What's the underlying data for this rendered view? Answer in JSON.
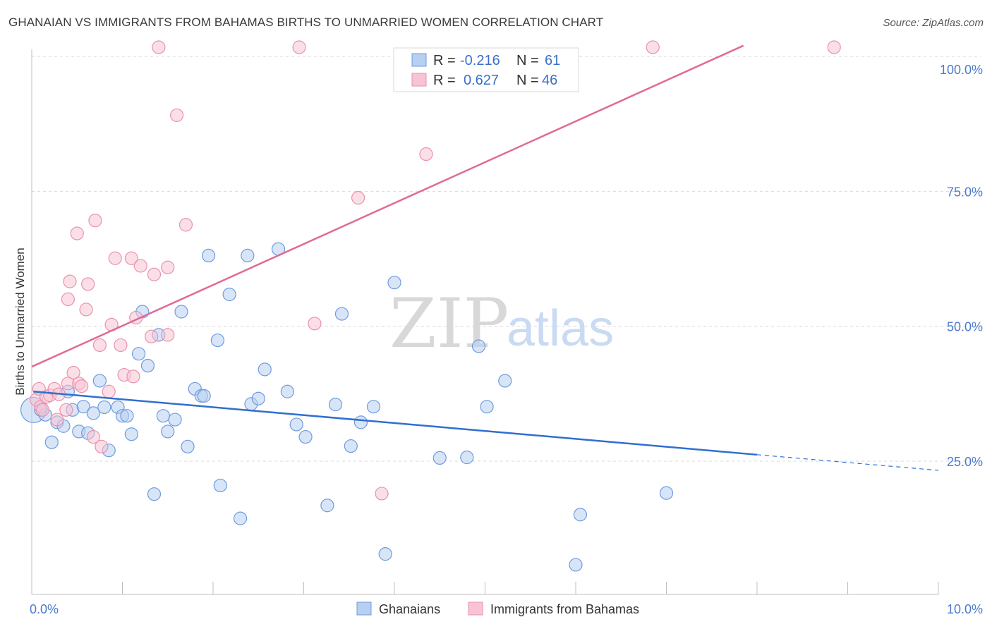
{
  "title": "GHANAIAN VS IMMIGRANTS FROM BAHAMAS BIRTHS TO UNMARRIED WOMEN CORRELATION CHART",
  "source": "Source: ZipAtlas.com",
  "watermark": {
    "part1": "ZIP",
    "part2": "atlas"
  },
  "colors": {
    "blue_fill": "#b7cff0",
    "blue_stroke": "#6f9be0",
    "blue_line": "#2f6fd0",
    "pink_fill": "#f7c4d4",
    "pink_stroke": "#e992ae",
    "pink_line": "#e06a93",
    "grid": "#d9d9d9",
    "tick_text": "#4a7bd0"
  },
  "legend": {
    "row1": {
      "r_label": "R =",
      "r_value": "-0.216",
      "n_label": "N =",
      "n_value": "61"
    },
    "row2": {
      "r_label": "R =",
      "r_value": "0.627",
      "n_label": "N =",
      "n_value": "46"
    }
  },
  "chart_data": {
    "type": "scatter",
    "title": "GHANAIAN VS IMMIGRANTS FROM BAHAMAS BIRTHS TO UNMARRIED WOMEN CORRELATION CHART",
    "xlabel": "",
    "ylabel": "Births to Unmarried Women",
    "xlim": [
      0,
      10
    ],
    "ylim": [
      0,
      102
    ],
    "x_tick_labels": [
      {
        "value": 0,
        "label": "0.0%"
      },
      {
        "value": 10,
        "label": "10.0%"
      }
    ],
    "y_tick_labels": [
      {
        "value": 25,
        "label": "25.0%"
      },
      {
        "value": 50,
        "label": "50.0%"
      },
      {
        "value": 75,
        "label": "75.0%"
      },
      {
        "value": 100,
        "label": "100.0%"
      }
    ],
    "series": [
      {
        "name": "Ghanaians",
        "color": "#6f9be0",
        "r": -0.216,
        "n": 61,
        "trend": {
          "x0": 0.02,
          "y0": 37.9,
          "x1": 8.0,
          "y1": 26.2,
          "dash_to_x": 10.0,
          "dash_to_y": 23.3
        },
        "points": [
          {
            "x": 0.02,
            "y": 34.5,
            "big": true
          },
          {
            "x": 0.1,
            "y": 34.5
          },
          {
            "x": 0.15,
            "y": 33.6
          },
          {
            "x": 0.22,
            "y": 28.5
          },
          {
            "x": 0.28,
            "y": 32.2
          },
          {
            "x": 0.35,
            "y": 31.5
          },
          {
            "x": 0.4,
            "y": 37.9
          },
          {
            "x": 0.45,
            "y": 34.5
          },
          {
            "x": 0.52,
            "y": 30.5
          },
          {
            "x": 0.57,
            "y": 35.1
          },
          {
            "x": 0.62,
            "y": 30.2
          },
          {
            "x": 0.68,
            "y": 33.9
          },
          {
            "x": 0.75,
            "y": 39.9
          },
          {
            "x": 0.8,
            "y": 35.0
          },
          {
            "x": 0.85,
            "y": 27.0
          },
          {
            "x": 0.95,
            "y": 35.0
          },
          {
            "x": 1.0,
            "y": 33.4
          },
          {
            "x": 1.05,
            "y": 33.4
          },
          {
            "x": 1.1,
            "y": 30.0
          },
          {
            "x": 1.18,
            "y": 44.9
          },
          {
            "x": 1.22,
            "y": 52.7
          },
          {
            "x": 1.28,
            "y": 42.7
          },
          {
            "x": 1.35,
            "y": 18.9
          },
          {
            "x": 1.4,
            "y": 48.4
          },
          {
            "x": 1.45,
            "y": 33.4
          },
          {
            "x": 1.5,
            "y": 30.5
          },
          {
            "x": 1.58,
            "y": 32.7
          },
          {
            "x": 1.65,
            "y": 52.7
          },
          {
            "x": 1.72,
            "y": 27.7
          },
          {
            "x": 1.8,
            "y": 38.4
          },
          {
            "x": 1.87,
            "y": 37.1
          },
          {
            "x": 1.9,
            "y": 37.1
          },
          {
            "x": 1.95,
            "y": 63.1
          },
          {
            "x": 2.05,
            "y": 47.4
          },
          {
            "x": 2.08,
            "y": 20.5
          },
          {
            "x": 2.18,
            "y": 55.9
          },
          {
            "x": 2.3,
            "y": 14.4
          },
          {
            "x": 2.38,
            "y": 63.1
          },
          {
            "x": 2.42,
            "y": 35.6
          },
          {
            "x": 2.5,
            "y": 36.6
          },
          {
            "x": 2.57,
            "y": 42.0
          },
          {
            "x": 2.72,
            "y": 64.3
          },
          {
            "x": 2.82,
            "y": 37.9
          },
          {
            "x": 2.92,
            "y": 31.8
          },
          {
            "x": 3.02,
            "y": 29.5
          },
          {
            "x": 3.26,
            "y": 16.8
          },
          {
            "x": 3.35,
            "y": 35.5
          },
          {
            "x": 3.42,
            "y": 52.3
          },
          {
            "x": 3.52,
            "y": 27.8
          },
          {
            "x": 3.63,
            "y": 32.2
          },
          {
            "x": 3.77,
            "y": 35.1
          },
          {
            "x": 3.9,
            "y": 7.8
          },
          {
            "x": 4.0,
            "y": 58.1
          },
          {
            "x": 4.5,
            "y": 25.6
          },
          {
            "x": 4.8,
            "y": 25.7
          },
          {
            "x": 4.93,
            "y": 46.3
          },
          {
            "x": 5.02,
            "y": 35.1
          },
          {
            "x": 5.22,
            "y": 39.9
          },
          {
            "x": 6.05,
            "y": 15.1
          },
          {
            "x": 6.0,
            "y": 5.8
          },
          {
            "x": 7.0,
            "y": 19.1
          }
        ]
      },
      {
        "name": "Immigrants from Bahamas",
        "color": "#e992ae",
        "r": 0.627,
        "n": 46,
        "trend": {
          "x0": 0.0,
          "y0": 42.5,
          "x1": 7.85,
          "y1": 102.0
        },
        "points": [
          {
            "x": 0.05,
            "y": 36.4
          },
          {
            "x": 0.08,
            "y": 38.4
          },
          {
            "x": 0.1,
            "y": 35.1
          },
          {
            "x": 0.12,
            "y": 34.5
          },
          {
            "x": 0.16,
            "y": 36.9
          },
          {
            "x": 0.2,
            "y": 37.2
          },
          {
            "x": 0.25,
            "y": 38.4
          },
          {
            "x": 0.28,
            "y": 32.7
          },
          {
            "x": 0.3,
            "y": 37.4
          },
          {
            "x": 0.38,
            "y": 34.5
          },
          {
            "x": 0.4,
            "y": 39.4
          },
          {
            "x": 0.4,
            "y": 55.0
          },
          {
            "x": 0.42,
            "y": 58.3
          },
          {
            "x": 0.46,
            "y": 41.4
          },
          {
            "x": 0.5,
            "y": 67.2
          },
          {
            "x": 0.52,
            "y": 39.4
          },
          {
            "x": 0.55,
            "y": 38.9
          },
          {
            "x": 0.6,
            "y": 53.1
          },
          {
            "x": 0.62,
            "y": 57.8
          },
          {
            "x": 0.68,
            "y": 29.5
          },
          {
            "x": 0.7,
            "y": 69.6
          },
          {
            "x": 0.75,
            "y": 46.5
          },
          {
            "x": 0.77,
            "y": 27.7
          },
          {
            "x": 0.85,
            "y": 37.9
          },
          {
            "x": 0.88,
            "y": 50.3
          },
          {
            "x": 0.92,
            "y": 62.6
          },
          {
            "x": 0.98,
            "y": 46.5
          },
          {
            "x": 1.02,
            "y": 41.0
          },
          {
            "x": 1.1,
            "y": 62.6
          },
          {
            "x": 1.12,
            "y": 40.7
          },
          {
            "x": 1.15,
            "y": 51.6
          },
          {
            "x": 1.2,
            "y": 61.2
          },
          {
            "x": 1.32,
            "y": 48.1
          },
          {
            "x": 1.35,
            "y": 59.6
          },
          {
            "x": 1.4,
            "y": 101.7
          },
          {
            "x": 1.5,
            "y": 48.4
          },
          {
            "x": 1.5,
            "y": 60.9
          },
          {
            "x": 1.6,
            "y": 89.1
          },
          {
            "x": 1.7,
            "y": 68.8
          },
          {
            "x": 2.95,
            "y": 101.7
          },
          {
            "x": 3.12,
            "y": 50.5
          },
          {
            "x": 3.6,
            "y": 73.8
          },
          {
            "x": 3.86,
            "y": 19.0
          },
          {
            "x": 4.35,
            "y": 81.9
          },
          {
            "x": 6.85,
            "y": 101.7
          },
          {
            "x": 8.85,
            "y": 101.7
          }
        ]
      }
    ],
    "legend_position": "top-center",
    "grid": true
  },
  "bottom_legend": [
    {
      "label": "Ghanaians"
    },
    {
      "label": "Immigrants from Bahamas"
    }
  ]
}
